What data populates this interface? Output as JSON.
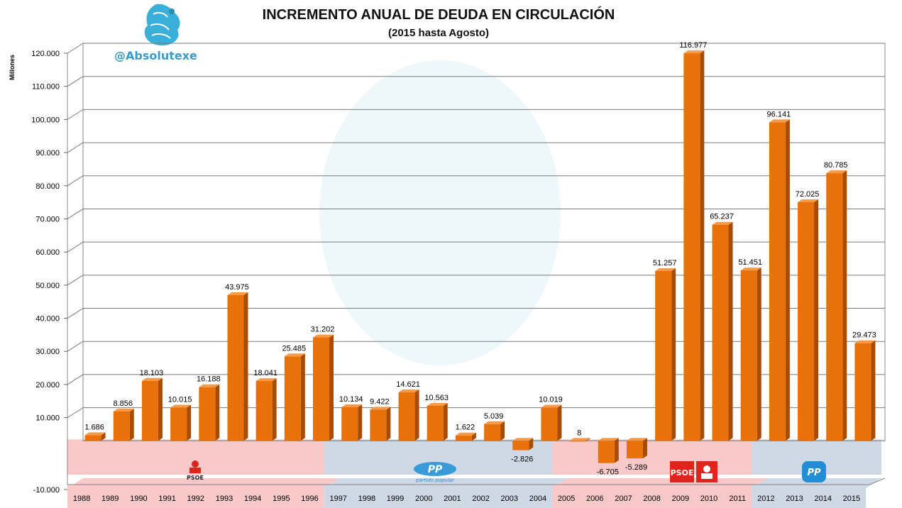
{
  "chart_data": {
    "type": "bar",
    "title": "INCREMENTO ANUAL DE DEUDA EN CIRCULACIÓN",
    "subtitle": "(2015 hasta Agosto)",
    "ylabel": "Millones",
    "xlabel": "",
    "ylim": [
      -10000,
      120000
    ],
    "yticks": [
      "-10.000",
      "10.000",
      "20.000",
      "30.000",
      "40.000",
      "50.000",
      "60.000",
      "70.000",
      "80.000",
      "90.000",
      "100.000",
      "110.000",
      "120.000"
    ],
    "grid": true,
    "categories": [
      "1988",
      "1989",
      "1990",
      "1991",
      "1992",
      "1993",
      "1994",
      "1995",
      "1996",
      "1997",
      "1998",
      "1999",
      "2000",
      "2001",
      "2002",
      "2003",
      "2004",
      "2005",
      "2006",
      "2007",
      "2008",
      "2009",
      "2010",
      "2011",
      "2012",
      "2013",
      "2014",
      "2015"
    ],
    "values": [
      1686,
      8856,
      18103,
      10015,
      16188,
      43975,
      18041,
      25485,
      31202,
      10134,
      9422,
      14621,
      10563,
      1622,
      5039,
      -2826,
      10019,
      8,
      -6705,
      -5289,
      51257,
      116977,
      65237,
      51451,
      96141,
      72025,
      80785,
      29473
    ],
    "data_labels": [
      "1.686",
      "8.856",
      "18.103",
      "10.015",
      "16.188",
      "43.975",
      "18.041",
      "25.485",
      "31.202",
      "10.134",
      "9.422",
      "14.621",
      "10.563",
      "1.622",
      "5.039",
      "-2.826",
      "10.019",
      "8",
      "-6.705",
      "-5.289",
      "51.257",
      "116.977",
      "65.237",
      "51.451",
      "96.141",
      "72.025",
      "80.785",
      "29.473"
    ],
    "bar_color": "#e8710a",
    "periods": [
      {
        "party": "PSOE",
        "start": 0,
        "end": 8,
        "color": "#f9c9c9",
        "logo_text": "PSOE"
      },
      {
        "party": "PP",
        "start": 9,
        "end": 16,
        "color": "#cfd9e6",
        "logo_text": "PP",
        "logo_sub": "partido popular"
      },
      {
        "party": "PSOE",
        "start": 17,
        "end": 23,
        "color": "#f9c9c9",
        "logo_text": "PSOE"
      },
      {
        "party": "PP",
        "start": 24,
        "end": 27,
        "color": "#cfd9e6",
        "logo_text": "PP"
      }
    ]
  },
  "brand": {
    "handle": "@Absolutexe"
  },
  "colors": {
    "psoe_red": "#e0231b",
    "pp_blue": "#1f8ed6",
    "grid": "#888888"
  }
}
